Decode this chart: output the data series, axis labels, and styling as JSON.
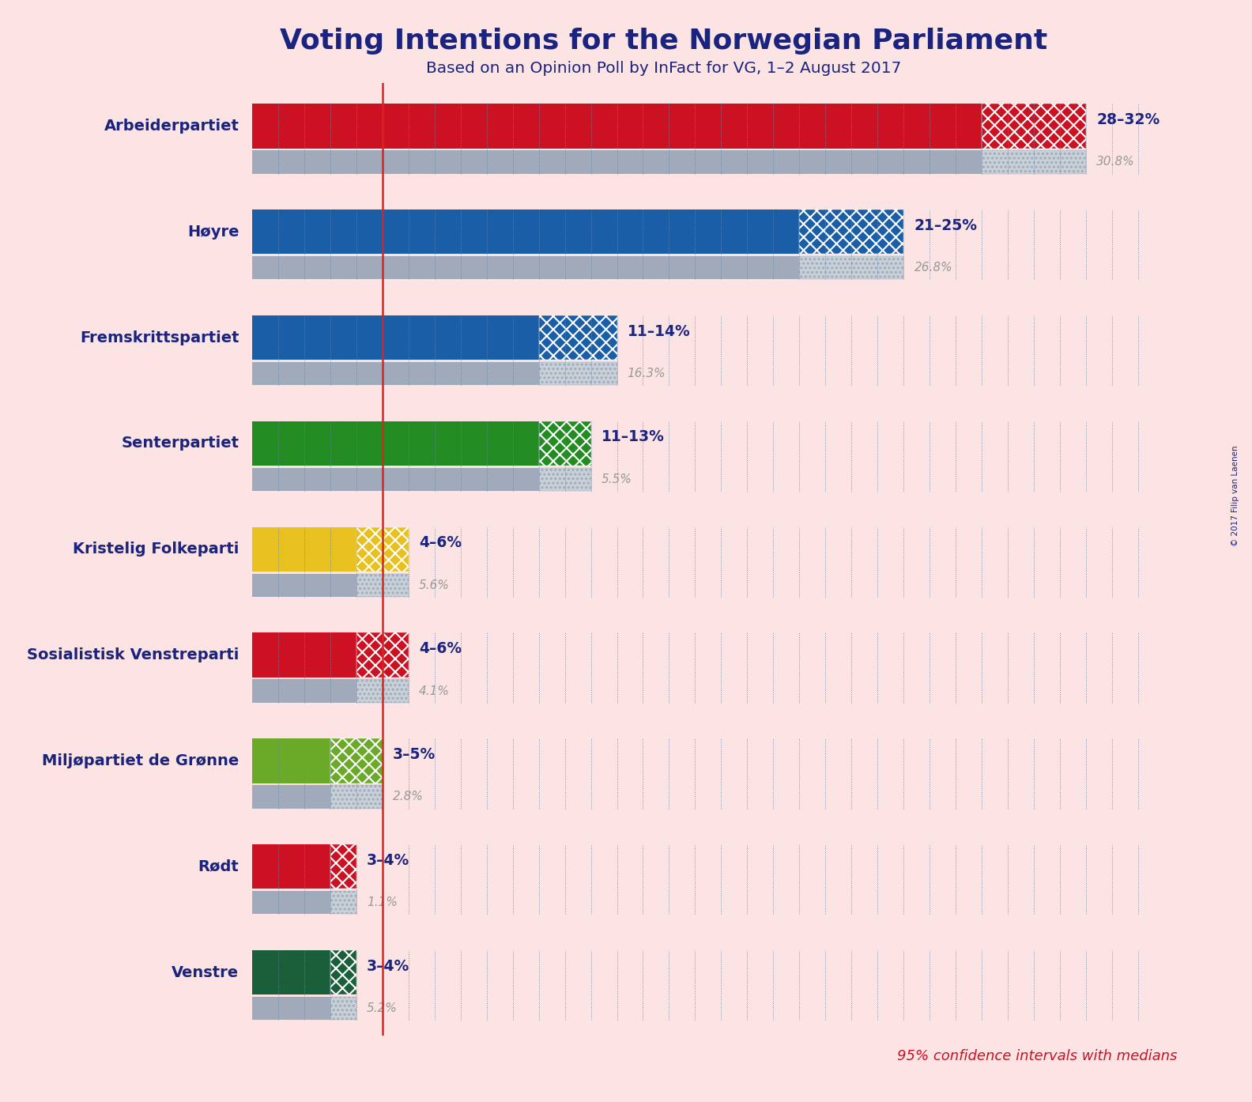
{
  "title": "Voting Intentions for the Norwegian Parliament",
  "subtitle": "Based on an Opinion Poll by InFact for VG, 1–2 August 2017",
  "copyright": "© 2017 Filip van Laenen",
  "background_color": "#fce4e4",
  "parties": [
    {
      "name": "Arbeiderpartiet",
      "ci_low": 28,
      "ci_high": 32,
      "median": 30.8,
      "color": "#cc1122",
      "label": "28–32%",
      "median_label": "30.8%"
    },
    {
      "name": "Høyre",
      "ci_low": 21,
      "ci_high": 25,
      "median": 26.8,
      "color": "#1a5ea8",
      "label": "21–25%",
      "median_label": "26.8%"
    },
    {
      "name": "Fremskrittspartiet",
      "ci_low": 11,
      "ci_high": 14,
      "median": 16.3,
      "color": "#1a5ea8",
      "label": "11–14%",
      "median_label": "16.3%"
    },
    {
      "name": "Senterpartiet",
      "ci_low": 11,
      "ci_high": 13,
      "median": 5.5,
      "color": "#228B22",
      "label": "11–13%",
      "median_label": "5.5%"
    },
    {
      "name": "Kristelig Folkeparti",
      "ci_low": 4,
      "ci_high": 6,
      "median": 5.6,
      "color": "#e8c020",
      "label": "4–6%",
      "median_label": "5.6%"
    },
    {
      "name": "Sosialistisk Venstreparti",
      "ci_low": 4,
      "ci_high": 6,
      "median": 4.1,
      "color": "#cc1122",
      "label": "4–6%",
      "median_label": "4.1%"
    },
    {
      "name": "Miljøpartiet de Grønne",
      "ci_low": 3,
      "ci_high": 5,
      "median": 2.8,
      "color": "#6aaa28",
      "label": "3–5%",
      "median_label": "2.8%"
    },
    {
      "name": "Rødt",
      "ci_low": 3,
      "ci_high": 4,
      "median": 1.1,
      "color": "#cc1122",
      "label": "3–4%",
      "median_label": "1.1%"
    },
    {
      "name": "Venstre",
      "ci_low": 3,
      "ci_high": 4,
      "median": 5.2,
      "color": "#1a5e3a",
      "label": "3–4%",
      "median_label": "5.2%"
    }
  ],
  "xmax": 35,
  "title_color": "#1a237e",
  "label_color": "#1a237e",
  "median_color": "#999999",
  "footnote": "95% confidence intervals with medians",
  "footnote_color": "#cc1122",
  "red_line_x": 5.0,
  "median_bar_color": "#a0aabb",
  "median_bar_light": "#c8d0d8",
  "dot_line_color": "#6688aa"
}
